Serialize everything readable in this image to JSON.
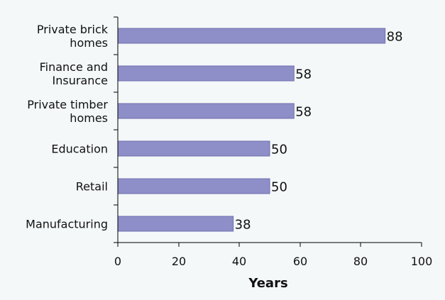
{
  "chart_data": {
    "type": "bar",
    "orientation": "horizontal",
    "categories": [
      [
        "Private brick",
        "homes"
      ],
      [
        "Finance and",
        "Insurance"
      ],
      [
        "Private timber",
        "homes"
      ],
      [
        "Education"
      ],
      [
        "Retail"
      ],
      [
        "Manufacturing"
      ]
    ],
    "values": [
      88,
      58,
      58,
      50,
      50,
      38
    ],
    "xlabel": "Years",
    "ylabel": "",
    "xlim": [
      0,
      100
    ],
    "xticks": [
      0,
      20,
      40,
      60,
      80,
      100
    ],
    "grid": false,
    "legend": "none",
    "bar_color": "#8e8ec8",
    "bar_edge_color": "#6f6fb0",
    "background_color": "#f4f8f8"
  }
}
